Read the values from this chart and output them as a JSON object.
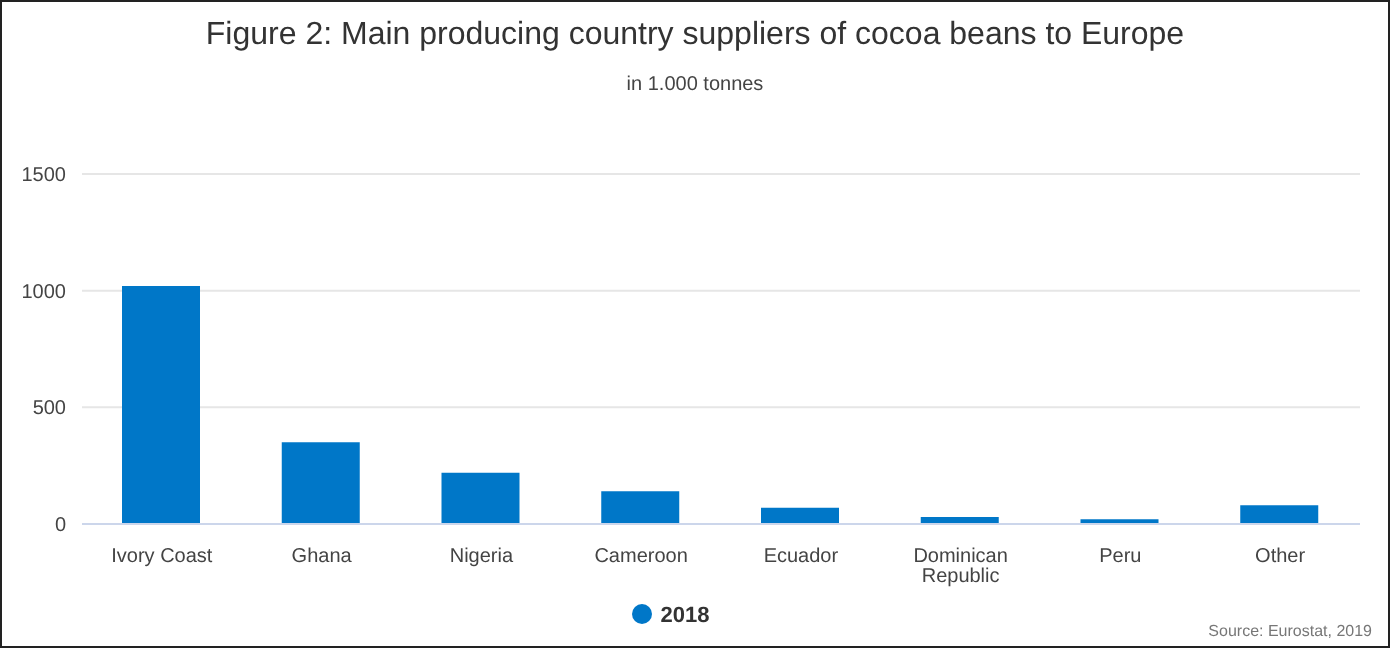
{
  "chart_data": {
    "type": "bar",
    "title": "Figure 2: Main producing country suppliers of cocoa beans to Europe",
    "subtitle": "in 1.000 tonnes",
    "categories": [
      "Ivory Coast",
      "Ghana",
      "Nigeria",
      "Cameroon",
      "Ecuador",
      "Dominican Republic",
      "Peru",
      "Other"
    ],
    "series": [
      {
        "name": "2018",
        "color": "#0077c8",
        "values": [
          1020,
          350,
          220,
          140,
          70,
          30,
          20,
          80
        ]
      }
    ],
    "ylim": [
      0,
      1500
    ],
    "yticks": [
      0,
      500,
      1000,
      1500
    ],
    "grid": "y",
    "legend": "bottom",
    "annotations": [
      "Source: Eurostat, 2019"
    ]
  }
}
